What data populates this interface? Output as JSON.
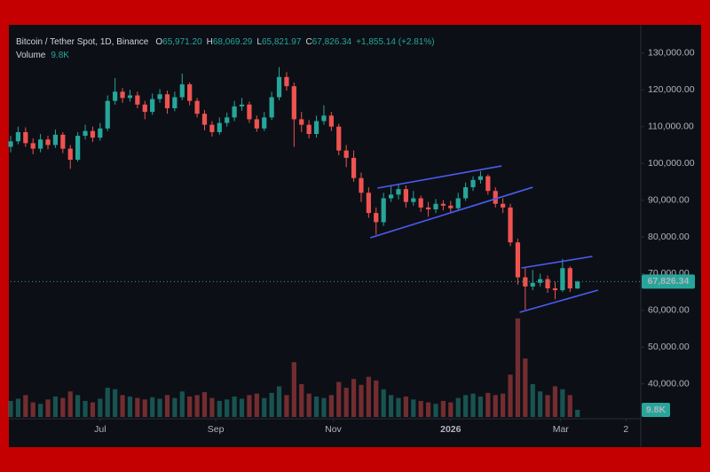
{
  "chart_data": {
    "type": "candlestick",
    "header": {
      "symbol": "Bitcoin / Tether Spot, 1D, Binance",
      "ohlc": [
        {
          "key": "O",
          "value": "65,971.20"
        },
        {
          "key": "H",
          "value": "68,069.29"
        },
        {
          "key": "L",
          "value": "65,821.97"
        },
        {
          "key": "C",
          "value": "67,826.34"
        }
      ],
      "change": "+1,855.14 (+2.81%)"
    },
    "up_color": "#26a69a",
    "down_color": "#ef5350",
    "trendline_color": "#4a5cf2",
    "grid": false,
    "xlim": [
      0,
      337
    ],
    "xticks": [
      {
        "value": 48,
        "label": "Jul"
      },
      {
        "value": 110,
        "label": "Sep"
      },
      {
        "value": 173,
        "label": "Nov"
      },
      {
        "value": 236,
        "label": "2026"
      },
      {
        "value": 295,
        "label": "Mar"
      },
      {
        "value": 330,
        "label": "2"
      }
    ],
    "ylim": [
      31000,
      136000
    ],
    "yticks": [
      {
        "value": 40000,
        "label": "40,000.00"
      },
      {
        "value": 50000,
        "label": "50,000.00"
      },
      {
        "value": 60000,
        "label": "60,000.00"
      },
      {
        "value": 70000,
        "label": "70,000.00"
      },
      {
        "value": 80000,
        "label": "80,000.00"
      },
      {
        "value": 90000,
        "label": "90,000.00"
      },
      {
        "value": 100000,
        "label": "100,000.00"
      },
      {
        "value": 110000,
        "label": "110,000.00"
      },
      {
        "value": 120000,
        "label": "120,000.00"
      },
      {
        "value": 130000,
        "label": "130,000.00"
      }
    ],
    "x": [
      0,
      4,
      8,
      12,
      16,
      20,
      24,
      28,
      32,
      36,
      40,
      44,
      48,
      52,
      56,
      60,
      64,
      68,
      72,
      76,
      80,
      84,
      88,
      92,
      96,
      100,
      104,
      108,
      112,
      116,
      120,
      124,
      128,
      132,
      136,
      140,
      144,
      148,
      152,
      156,
      160,
      164,
      168,
      172,
      176,
      180,
      184,
      188,
      192,
      196,
      200,
      204,
      208,
      212,
      216,
      220,
      224,
      228,
      232,
      236,
      240,
      244,
      248,
      252,
      256,
      260,
      264,
      268,
      272,
      276,
      280,
      284,
      288,
      292,
      296,
      300,
      304
    ],
    "open": [
      104500,
      106000,
      108500,
      105500,
      104000,
      106500,
      105000,
      107800,
      104000,
      101000,
      107500,
      108800,
      107000,
      109500,
      117000,
      119500,
      117800,
      118500,
      116000,
      114000,
      117500,
      118800,
      115000,
      118000,
      121500,
      117000,
      113500,
      110500,
      108500,
      111000,
      112500,
      115500,
      116000,
      112000,
      109500,
      112500,
      118000,
      123500,
      121000,
      112000,
      110500,
      108000,
      111500,
      113000,
      110000,
      103500,
      101500,
      96000,
      92000,
      86500,
      84000,
      90500,
      91500,
      93000,
      89500,
      90500,
      88000,
      87500,
      89000,
      88500,
      87800,
      90500,
      93500,
      95500,
      96500,
      92500,
      89000,
      88000,
      78500,
      69000,
      66500,
      67500,
      68500,
      66000,
      65500,
      71500,
      65971.2
    ],
    "high": [
      107500,
      110000,
      109800,
      106800,
      108000,
      107500,
      109200,
      108500,
      105000,
      108500,
      110500,
      110000,
      111000,
      118500,
      123200,
      120500,
      120000,
      119500,
      117000,
      119000,
      120200,
      119800,
      119500,
      124400,
      122000,
      117800,
      114500,
      111500,
      112500,
      113800,
      117000,
      117800,
      116800,
      113000,
      114000,
      119500,
      126200,
      124800,
      122000,
      114000,
      111800,
      113000,
      115800,
      114000,
      110800,
      105000,
      103500,
      97500,
      93500,
      88000,
      92000,
      94000,
      94500,
      94000,
      92500,
      91200,
      89500,
      90300,
      90000,
      89800,
      92000,
      94800,
      96500,
      97900,
      97000,
      93500,
      90500,
      89000,
      79500,
      71500,
      71000,
      70000,
      69500,
      67800,
      74000,
      72000,
      68069.29
    ],
    "low": [
      103000,
      105200,
      104500,
      102500,
      103000,
      103800,
      104200,
      102800,
      98500,
      100500,
      106500,
      105800,
      106200,
      108800,
      116000,
      116500,
      116800,
      115000,
      112000,
      113200,
      116500,
      113500,
      114200,
      117200,
      115800,
      112500,
      109000,
      107300,
      107800,
      110000,
      111500,
      114300,
      111000,
      108600,
      108800,
      111800,
      117200,
      119800,
      104500,
      108500,
      106800,
      107000,
      110500,
      108800,
      102200,
      99000,
      95000,
      89500,
      85200,
      80600,
      83000,
      89500,
      90200,
      88000,
      88500,
      86800,
      85500,
      86500,
      87200,
      86600,
      87000,
      89800,
      92500,
      94500,
      91500,
      88000,
      86500,
      77500,
      67000,
      60200,
      65500,
      66500,
      64800,
      63000,
      65000,
      65000,
      65821.97
    ],
    "close": [
      106000,
      108500,
      105500,
      104000,
      106500,
      105000,
      107800,
      104000,
      101000,
      107500,
      108800,
      107000,
      109500,
      117000,
      119500,
      117800,
      118500,
      116000,
      114000,
      117500,
      118800,
      115000,
      118000,
      121500,
      117000,
      113500,
      110500,
      108500,
      111000,
      112500,
      115500,
      116000,
      112000,
      109500,
      112500,
      118000,
      123500,
      121000,
      112000,
      110500,
      108000,
      111500,
      113000,
      110000,
      103500,
      101500,
      96000,
      92000,
      86500,
      84000,
      90500,
      91500,
      93000,
      89500,
      90500,
      88000,
      87500,
      89000,
      88500,
      87800,
      90500,
      93500,
      95500,
      96500,
      92500,
      89000,
      88000,
      78500,
      69000,
      66500,
      67500,
      68500,
      66000,
      65500,
      71500,
      65971.2,
      67826.34
    ],
    "last_price_label": "67,826.34",
    "volume": {
      "name": "Volume",
      "vlim": [
        0,
        170000
      ],
      "values": [
        22000,
        25000,
        30000,
        20000,
        18000,
        24000,
        28000,
        26000,
        35000,
        30000,
        22000,
        20000,
        25000,
        40000,
        38000,
        30000,
        28000,
        26000,
        24000,
        27000,
        25000,
        30000,
        26000,
        35000,
        28000,
        30000,
        34000,
        26000,
        22000,
        24000,
        28000,
        25000,
        30000,
        32000,
        26000,
        33000,
        42000,
        30000,
        75000,
        45000,
        32000,
        28000,
        26000,
        30000,
        48000,
        40000,
        52000,
        44000,
        55000,
        50000,
        38000,
        30000,
        26000,
        28000,
        24000,
        22000,
        20000,
        18000,
        22000,
        20000,
        26000,
        30000,
        32000,
        28000,
        33000,
        30000,
        32000,
        58000,
        135000,
        80000,
        45000,
        35000,
        30000,
        42000,
        38000,
        30000,
        9800
      ],
      "last_label": "9.8K"
    },
    "trendlines": [
      {
        "x": [
          196.7,
          263.3
        ],
        "y": [
          93270,
          99300
        ]
      },
      {
        "x": [
          192.9,
          280
        ],
        "y": [
          79760,
          93500
        ]
      },
      {
        "x": [
          274,
          312
        ],
        "y": [
          71550,
          74690
        ]
      },
      {
        "x": [
          273,
          315
        ],
        "y": [
          59480,
          65520
        ]
      }
    ]
  }
}
